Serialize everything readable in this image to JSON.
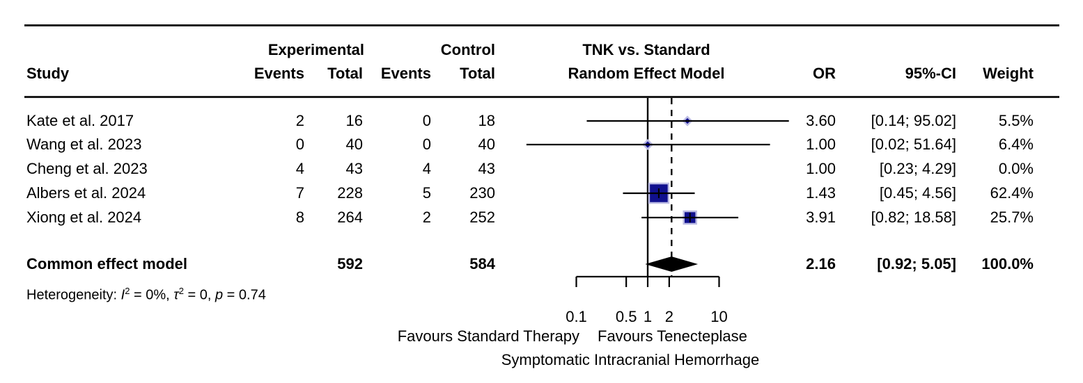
{
  "header": {
    "study": "Study",
    "experimental": "Experimental",
    "control": "Control",
    "events": "Events",
    "total": "Total",
    "model_line1": "TNK vs. Standard",
    "model_line2": "Random Effect Model",
    "or": "OR",
    "ci": "95%-CI",
    "weight": "Weight"
  },
  "studies": [
    {
      "name": "Kate et al. 2017",
      "exp_events": "2",
      "exp_total": "16",
      "ctrl_events": "0",
      "ctrl_total": "18",
      "or_text": "3.60",
      "ci_text": "[0.14; 95.02]",
      "weight_text": "5.5%"
    },
    {
      "name": "Wang et al. 2023",
      "exp_events": "0",
      "exp_total": "40",
      "ctrl_events": "0",
      "ctrl_total": "40",
      "or_text": "1.00",
      "ci_text": "[0.02; 51.64]",
      "weight_text": "6.4%"
    },
    {
      "name": "Cheng et al. 2023",
      "exp_events": "4",
      "exp_total": "43",
      "ctrl_events": "4",
      "ctrl_total": "43",
      "or_text": "1.00",
      "ci_text": "[0.23; 4.29]",
      "weight_text": "0.0%"
    },
    {
      "name": "Albers et al. 2024",
      "exp_events": "7",
      "exp_total": "228",
      "ctrl_events": "5",
      "ctrl_total": "230",
      "or_text": "1.43",
      "ci_text": "[0.45; 4.56]",
      "weight_text": "62.4%"
    },
    {
      "name": "Xiong et al. 2024",
      "exp_events": "8",
      "exp_total": "264",
      "ctrl_events": "2",
      "ctrl_total": "252",
      "or_text": "3.91",
      "ci_text": "[0.82; 18.58]",
      "weight_text": "25.7%"
    }
  ],
  "summary": {
    "label": "Common effect model",
    "exp_total": "592",
    "ctrl_total": "584",
    "or_text": "2.16",
    "ci_text": "[0.92; 5.05]",
    "weight_text": "100.0%"
  },
  "heterogeneity_parts": [
    {
      "text": "Heterogeneity: "
    },
    {
      "text": "I",
      "italic": true
    },
    {
      "text": "2",
      "sup": true
    },
    {
      "text": " = 0%, "
    },
    {
      "text": "τ",
      "italic": true
    },
    {
      "text": "2",
      "sup": true
    },
    {
      "text": " = 0, "
    },
    {
      "text": "p",
      "italic": true
    },
    {
      "text": " = 0.74"
    }
  ],
  "axis": {
    "tick_labels": [
      "0.1",
      "0.5",
      "1",
      "2",
      "10"
    ],
    "label_left": "Favours Standard Therapy",
    "label_right": "Favours Tenecteplase",
    "label_sub": "Symptomatic Intracranial Hemorrhage"
  },
  "colors": {
    "marker_fill": "#10108e",
    "marker_border": "#bcbce4",
    "diamond": "#000000",
    "line": "#000000"
  },
  "chart_data": {
    "type": "scatter",
    "subtype": "forest_plot_meta_analysis",
    "title": "TNK vs. Standard Random Effect Model",
    "x_scale": "log",
    "x_ticks": [
      0.1,
      0.5,
      1,
      2,
      10
    ],
    "x_range": [
      0.1,
      10
    ],
    "reference_line": 1,
    "pooled_or_dashed_line": 2.16,
    "series": [
      {
        "name": "Kate et al. 2017",
        "or": 3.6,
        "ci_low": 0.14,
        "ci_high": 95.02,
        "weight_pct": 5.5,
        "exp_events": 2,
        "exp_total": 16,
        "ctrl_events": 0,
        "ctrl_total": 18
      },
      {
        "name": "Wang et al. 2023",
        "or": 1.0,
        "ci_low": 0.02,
        "ci_high": 51.64,
        "weight_pct": 6.4,
        "exp_events": 0,
        "exp_total": 40,
        "ctrl_events": 0,
        "ctrl_total": 40
      },
      {
        "name": "Cheng et al. 2023",
        "or": 1.0,
        "ci_low": 0.23,
        "ci_high": 4.29,
        "weight_pct": 0.0,
        "exp_events": 4,
        "exp_total": 43,
        "ctrl_events": 4,
        "ctrl_total": 43
      },
      {
        "name": "Albers et al. 2024",
        "or": 1.43,
        "ci_low": 0.45,
        "ci_high": 4.56,
        "weight_pct": 62.4,
        "exp_events": 7,
        "exp_total": 228,
        "ctrl_events": 5,
        "ctrl_total": 230
      },
      {
        "name": "Xiong et al. 2024",
        "or": 3.91,
        "ci_low": 0.82,
        "ci_high": 18.58,
        "weight_pct": 25.7,
        "exp_events": 8,
        "exp_total": 264,
        "ctrl_events": 2,
        "ctrl_total": 252
      }
    ],
    "summary": {
      "name": "Common effect model",
      "or": 2.16,
      "ci_low": 0.92,
      "ci_high": 5.05,
      "weight_pct": 100.0,
      "exp_total": 592,
      "ctrl_total": 584
    },
    "heterogeneity": {
      "I2": "0%",
      "tau2": "0",
      "p": "0.74"
    },
    "xlabel_left": "Favours Standard Therapy",
    "xlabel_right": "Favours Tenecteplase",
    "xlabel": "Symptomatic Intracranial Hemorrhage",
    "legend": "none",
    "grid": "off"
  }
}
